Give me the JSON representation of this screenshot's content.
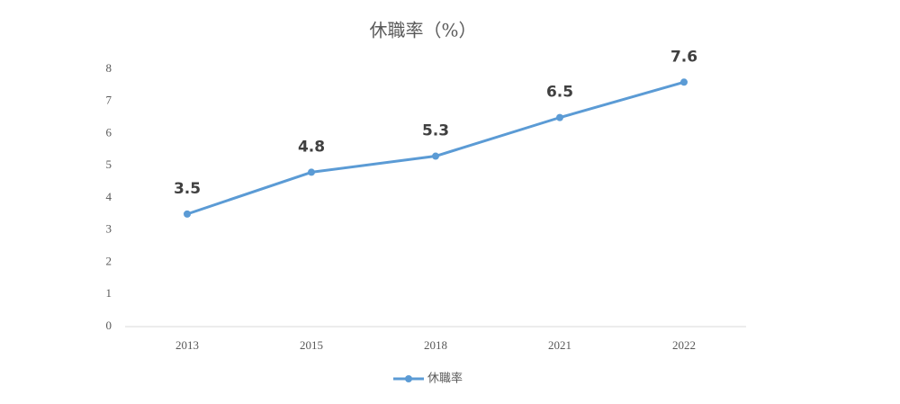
{
  "chart_data": {
    "type": "line",
    "title": "休職率（%）",
    "categories": [
      "2013",
      "2015",
      "2018",
      "2021",
      "2022"
    ],
    "series": [
      {
        "name": "休職率",
        "color": "#5b9bd5",
        "values": [
          3.5,
          4.8,
          5.3,
          6.5,
          7.6
        ]
      }
    ],
    "ylim": [
      0,
      8
    ],
    "yticks": [
      0,
      1,
      2,
      3,
      4,
      5,
      6,
      7,
      8
    ],
    "grid": false,
    "legend": "bottom"
  }
}
